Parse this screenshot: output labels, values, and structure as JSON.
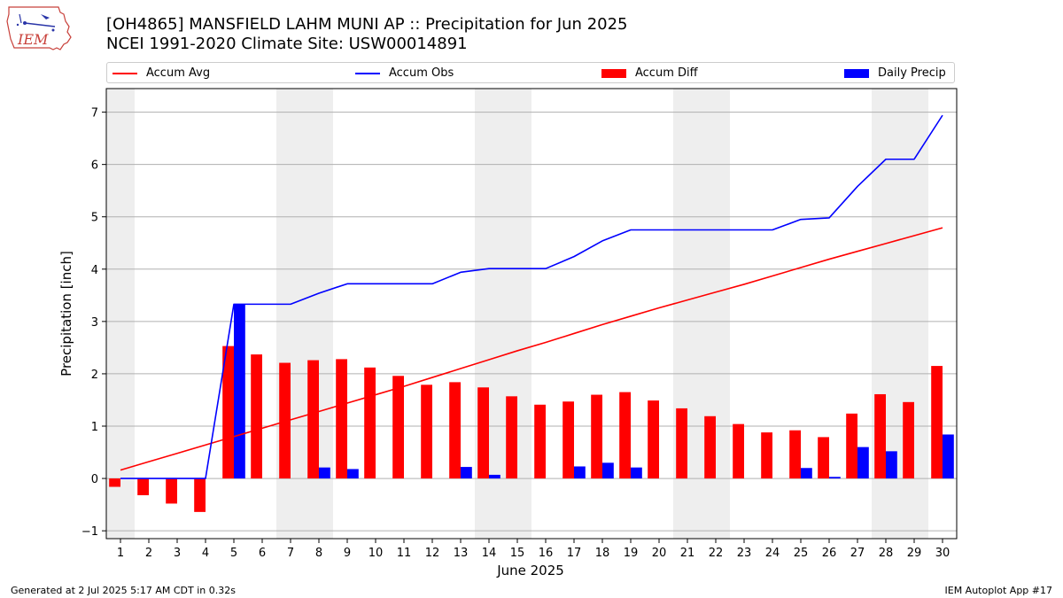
{
  "title_line1": "[OH4865] MANSFIELD LAHM MUNI AP :: Precipitation for Jun 2025",
  "title_line2": "NCEI 1991-2020 Climate Site: USW00014891",
  "logo_text": "IEM",
  "footer_left": "Generated at 2 Jul 2025 5:17 AM CDT in 0.32s",
  "footer_right": "IEM Autoplot App #17",
  "colors": {
    "avg": "#ff0000",
    "obs": "#0000ff",
    "diff": "#ff0000",
    "daily": "#0000ff",
    "weekend_band": "#eeeeee",
    "grid": "#b0b0b0"
  },
  "chart_data": {
    "type": "bar",
    "xlabel": "June 2025",
    "ylabel": "Precipitation [inch]",
    "ylim": [
      -1.15,
      7.45
    ],
    "yticks": [
      -1,
      0,
      1,
      2,
      3,
      4,
      5,
      6,
      7
    ],
    "xlim": [
      0.5,
      30.5
    ],
    "grid": "horizontal",
    "legend_placement": "top",
    "weekend_bands": [
      [
        1,
        1
      ],
      [
        7,
        8
      ],
      [
        14,
        15
      ],
      [
        21,
        22
      ],
      [
        28,
        29
      ]
    ],
    "x": [
      1,
      2,
      3,
      4,
      5,
      6,
      7,
      8,
      9,
      10,
      11,
      12,
      13,
      14,
      15,
      16,
      17,
      18,
      19,
      20,
      21,
      22,
      23,
      24,
      25,
      26,
      27,
      28,
      29,
      30
    ],
    "series": [
      {
        "name": "Accum Avg",
        "type": "line",
        "values": [
          0.16,
          0.32,
          0.48,
          0.64,
          0.8,
          0.96,
          1.12,
          1.28,
          1.44,
          1.6,
          1.76,
          1.93,
          2.1,
          2.27,
          2.44,
          2.6,
          2.77,
          2.94,
          3.1,
          3.26,
          3.41,
          3.56,
          3.71,
          3.87,
          4.03,
          4.19,
          4.34,
          4.49,
          4.64,
          4.79
        ]
      },
      {
        "name": "Accum Obs",
        "type": "line",
        "values": [
          0,
          0,
          0,
          0,
          3.33,
          3.33,
          3.33,
          3.54,
          3.72,
          3.72,
          3.72,
          3.72,
          3.94,
          4.01,
          4.01,
          4.01,
          4.24,
          4.54,
          4.75,
          4.75,
          4.75,
          4.75,
          4.75,
          4.75,
          4.95,
          4.98,
          5.58,
          6.1,
          6.1,
          6.94
        ]
      },
      {
        "name": "Accum Diff",
        "type": "bar",
        "values": [
          -0.16,
          -0.32,
          -0.48,
          -0.64,
          2.53,
          2.37,
          2.21,
          2.26,
          2.28,
          2.12,
          1.96,
          1.79,
          1.84,
          1.74,
          1.57,
          1.41,
          1.47,
          1.6,
          1.65,
          1.49,
          1.34,
          1.19,
          1.04,
          0.88,
          0.92,
          0.79,
          1.24,
          1.61,
          1.46,
          2.15
        ]
      },
      {
        "name": "Daily Precip",
        "type": "bar",
        "values": [
          0,
          0,
          0,
          0,
          3.33,
          0,
          0,
          0.21,
          0.18,
          0,
          0,
          0,
          0.22,
          0.07,
          0,
          0,
          0.23,
          0.3,
          0.21,
          0,
          0,
          0,
          0,
          0,
          0.2,
          0.03,
          0.6,
          0.52,
          0,
          0.84
        ]
      }
    ]
  }
}
